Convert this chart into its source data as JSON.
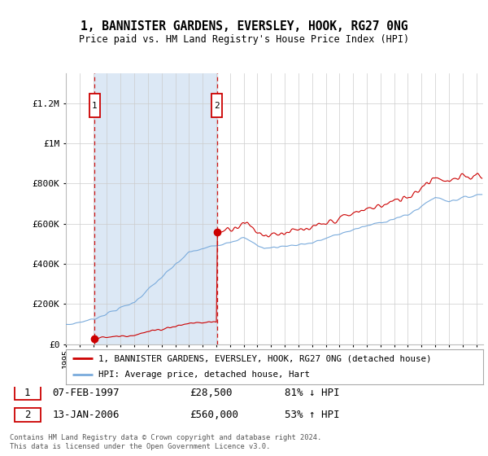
{
  "title1": "1, BANNISTER GARDENS, EVERSLEY, HOOK, RG27 0NG",
  "title2": "Price paid vs. HM Land Registry's House Price Index (HPI)",
  "legend_line1": "1, BANNISTER GARDENS, EVERSLEY, HOOK, RG27 0NG (detached house)",
  "legend_line2": "HPI: Average price, detached house, Hart",
  "sale1_date": "07-FEB-1997",
  "sale1_price": "£28,500",
  "sale1_hpi": "81% ↓ HPI",
  "sale1_year": 1997.1,
  "sale1_value": 28500,
  "sale2_date": "13-JAN-2006",
  "sale2_price": "£560,000",
  "sale2_hpi": "53% ↑ HPI",
  "sale2_year": 2006.04,
  "sale2_value": 560000,
  "hpi_color": "#7aabdc",
  "price_color": "#cc0000",
  "vline_color": "#cc0000",
  "shade_color": "#dce8f5",
  "footer": "Contains HM Land Registry data © Crown copyright and database right 2024.\nThis data is licensed under the Open Government Licence v3.0.",
  "yticks": [
    0,
    200000,
    400000,
    600000,
    800000,
    1000000,
    1200000
  ],
  "ylabels": [
    "£0",
    "£200K",
    "£400K",
    "£600K",
    "£800K",
    "£1M",
    "£1.2M"
  ],
  "xmin": 1995.0,
  "xmax": 2025.5,
  "ymax": 1350000
}
